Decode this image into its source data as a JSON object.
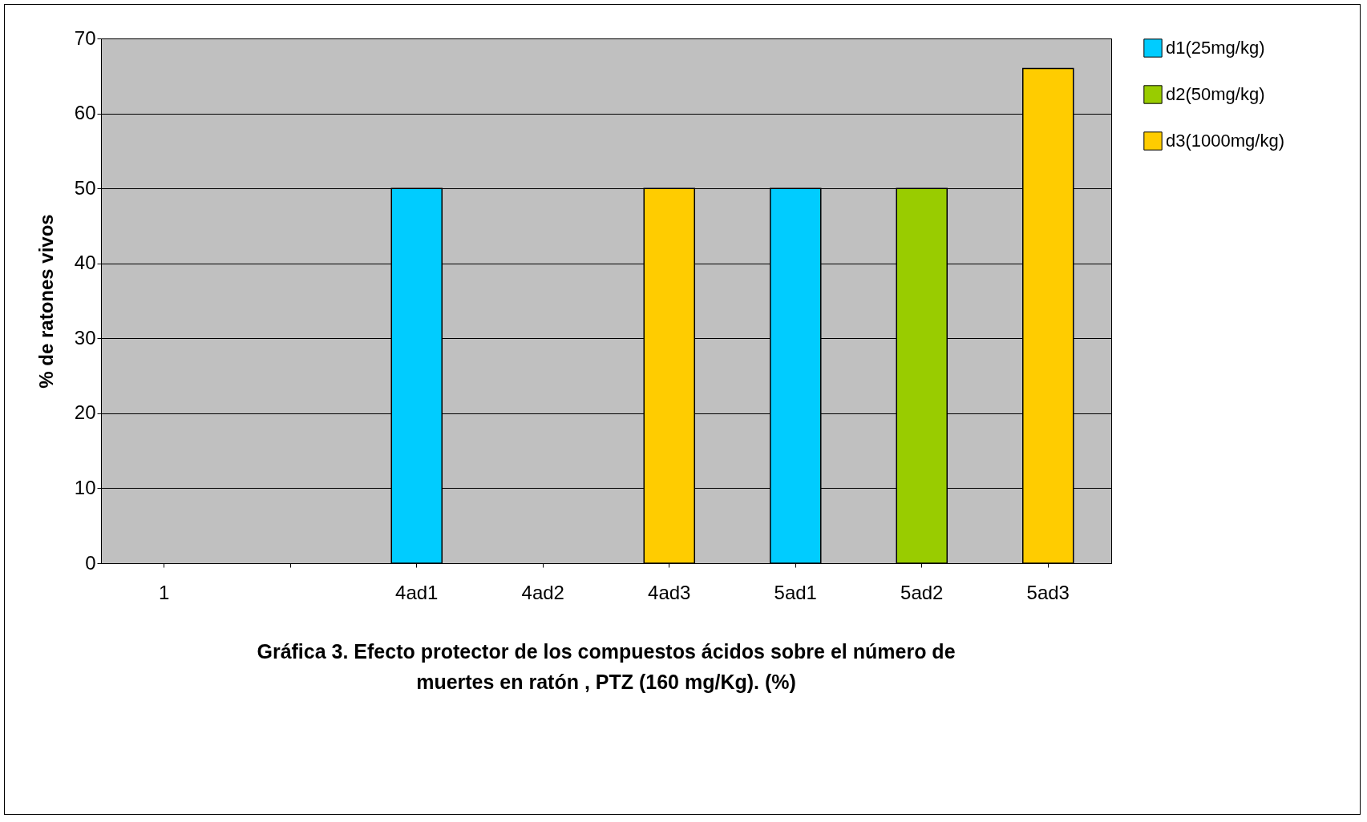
{
  "chart_data": {
    "type": "bar",
    "title": "Gráfica 3.  Efecto protector de los compuestos ácidos sobre el número de muertes en ratón , PTZ (160 mg/Kg). (%)",
    "ylabel": "% de ratones vivos",
    "categories": [
      "1",
      null,
      "4ad1",
      "4ad2",
      "4ad3",
      "5ad1",
      "5ad2",
      "5ad3"
    ],
    "series": [
      {
        "name": "d1(25mg/kg)",
        "color": "#00ccff",
        "values": [
          null,
          null,
          50,
          null,
          null,
          50,
          null,
          null
        ]
      },
      {
        "name": "d2(50mg/kg)",
        "color": "#99cc00",
        "values": [
          null,
          null,
          null,
          null,
          null,
          null,
          50,
          null
        ]
      },
      {
        "name": "d3(1000mg/kg)",
        "color": "#ffcc00",
        "values": [
          null,
          null,
          null,
          null,
          50,
          null,
          null,
          66
        ]
      }
    ],
    "ylim": [
      0,
      70
    ],
    "yticks": [
      0,
      10,
      20,
      30,
      40,
      50,
      60,
      70
    ],
    "grid": "y",
    "legend": "right"
  }
}
